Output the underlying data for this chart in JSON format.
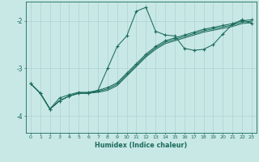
{
  "xlabel": "Humidex (Indice chaleur)",
  "background_color": "#c8e8e5",
  "line_color": "#1a6b5a",
  "grid_color": "#a8cccb",
  "x_values": [
    0,
    1,
    2,
    3,
    4,
    5,
    6,
    7,
    8,
    9,
    10,
    11,
    12,
    13,
    14,
    15,
    16,
    17,
    18,
    19,
    20,
    21,
    22,
    23
  ],
  "curve_main": [
    -3.32,
    -3.52,
    -3.85,
    -3.62,
    -3.55,
    -3.5,
    -3.5,
    -3.46,
    -3.0,
    -2.54,
    -2.32,
    -1.8,
    -1.72,
    -2.22,
    -2.3,
    -2.32,
    -2.58,
    -2.62,
    -2.6,
    -2.5,
    -2.28,
    -2.08,
    -1.98,
    -2.06
  ],
  "curve_line1": [
    -3.32,
    -3.52,
    -3.85,
    -3.68,
    -3.58,
    -3.52,
    -3.52,
    -3.46,
    -3.4,
    -3.3,
    -3.1,
    -2.9,
    -2.7,
    -2.54,
    -2.42,
    -2.36,
    -2.3,
    -2.24,
    -2.18,
    -2.14,
    -2.1,
    -2.06,
    -2.0,
    -1.98
  ],
  "curve_line2": [
    -3.32,
    -3.52,
    -3.85,
    -3.68,
    -3.58,
    -3.52,
    -3.52,
    -3.48,
    -3.43,
    -3.33,
    -3.13,
    -2.93,
    -2.73,
    -2.57,
    -2.45,
    -2.39,
    -2.33,
    -2.27,
    -2.21,
    -2.17,
    -2.13,
    -2.09,
    -2.03,
    -2.01
  ],
  "curve_line3": [
    -3.32,
    -3.52,
    -3.85,
    -3.68,
    -3.58,
    -3.52,
    -3.52,
    -3.5,
    -3.46,
    -3.36,
    -3.16,
    -2.96,
    -2.76,
    -2.6,
    -2.48,
    -2.42,
    -2.36,
    -2.3,
    -2.24,
    -2.2,
    -2.16,
    -2.12,
    -2.06,
    -2.04
  ],
  "ylim": [
    -4.35,
    -1.6
  ],
  "yticks": [
    -4.0,
    -3.0,
    -2.0
  ],
  "xlim": [
    -0.5,
    23.5
  ],
  "figsize": [
    3.2,
    2.0
  ],
  "dpi": 100
}
